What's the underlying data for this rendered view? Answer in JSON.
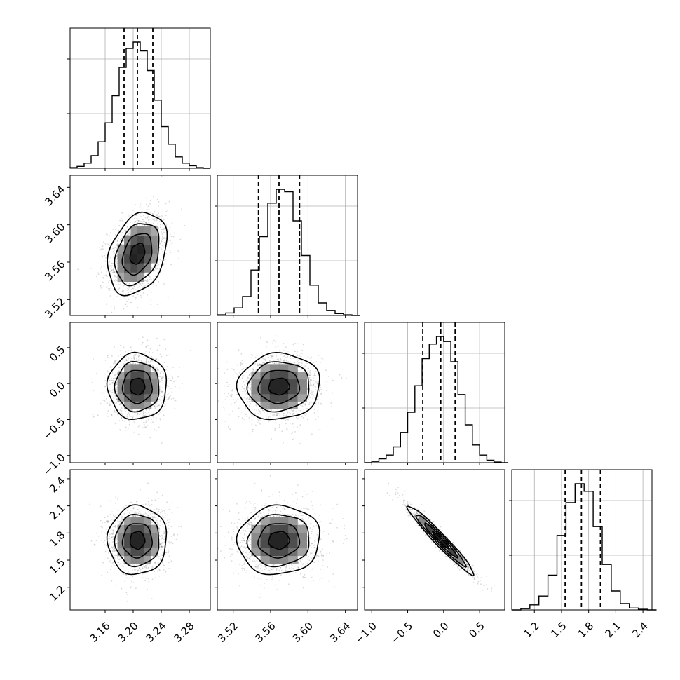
{
  "chart_data": {
    "type": "corner",
    "parameters": 4,
    "grid": true,
    "ranges": [
      [
        3.11,
        3.31
      ],
      [
        3.503,
        3.653
      ],
      [
        -1.1,
        0.85
      ],
      [
        0.95,
        2.5
      ]
    ],
    "ticks": [
      [
        3.16,
        3.2,
        3.24,
        3.28
      ],
      [
        3.52,
        3.56,
        3.6,
        3.64
      ],
      [
        -1.0,
        -0.5,
        0.0,
        0.5
      ],
      [
        1.2,
        1.5,
        1.8,
        2.1,
        2.4
      ]
    ],
    "tick_labels": [
      [
        "3.16",
        "3.20",
        "3.24",
        "3.28"
      ],
      [
        "3.52",
        "3.56",
        "3.60",
        "3.64"
      ],
      [
        "−1.0",
        "−0.5",
        "0.0",
        "0.5"
      ],
      [
        "1.2",
        "1.5",
        "1.8",
        "2.1",
        "2.4"
      ]
    ],
    "y_tick_labels": {
      "row1": [
        "3.52",
        "3.56",
        "3.60",
        "3.64"
      ],
      "row2": [
        "−1.0",
        "−0.5",
        "0.0",
        "0.5"
      ],
      "row3": [
        "1.2",
        "1.5",
        "1.8",
        "2.1",
        "2.4"
      ]
    },
    "quantiles": [
      [
        3.187,
        3.206,
        3.228
      ],
      [
        3.547,
        3.569,
        3.591
      ],
      [
        -0.29,
        -0.04,
        0.16
      ],
      [
        1.54,
        1.72,
        1.93
      ]
    ],
    "marginals": [
      {
        "param": 0,
        "bins": [
          3.11,
          3.12,
          3.13,
          3.14,
          3.15,
          3.16,
          3.17,
          3.18,
          3.19,
          3.2,
          3.21,
          3.22,
          3.23,
          3.24,
          3.25,
          3.26,
          3.27,
          3.28,
          3.29,
          3.3
        ],
        "counts": [
          1,
          3,
          8,
          20,
          42,
          72,
          115,
          160,
          190,
          200,
          186,
          155,
          108,
          66,
          38,
          18,
          8,
          4,
          1,
          0
        ]
      },
      {
        "param": 1,
        "bins": [
          3.503,
          3.512,
          3.521,
          3.53,
          3.539,
          3.548,
          3.557,
          3.566,
          3.575,
          3.584,
          3.593,
          3.602,
          3.611,
          3.62,
          3.629,
          3.638,
          3.647
        ],
        "counts": [
          1,
          4,
          12,
          30,
          72,
          125,
          178,
          200,
          196,
          150,
          95,
          48,
          20,
          8,
          3,
          1,
          0
        ]
      },
      {
        "param": 2,
        "bins": [
          -1.1,
          -1.0,
          -0.9,
          -0.8,
          -0.7,
          -0.6,
          -0.5,
          -0.4,
          -0.3,
          -0.2,
          -0.1,
          0.0,
          0.1,
          0.2,
          0.3,
          0.4,
          0.5,
          0.6,
          0.7,
          0.8
        ],
        "counts": [
          0,
          2,
          6,
          12,
          25,
          48,
          80,
          122,
          165,
          188,
          200,
          192,
          160,
          108,
          60,
          28,
          12,
          4,
          1,
          0
        ]
      },
      {
        "param": 3,
        "bins": [
          0.95,
          1.05,
          1.15,
          1.25,
          1.35,
          1.45,
          1.55,
          1.65,
          1.75,
          1.85,
          1.95,
          2.05,
          2.15,
          2.25,
          2.35,
          2.45
        ],
        "counts": [
          0,
          2,
          8,
          22,
          55,
          118,
          170,
          200,
          188,
          132,
          72,
          30,
          10,
          3,
          1,
          0
        ]
      }
    ],
    "joint": [
      {
        "x": 0,
        "y": 1,
        "mean": [
          3.206,
          3.569
        ],
        "std": [
          0.021,
          0.022
        ],
        "corr": 0.3
      },
      {
        "x": 0,
        "y": 2,
        "mean": [
          3.206,
          -0.04
        ],
        "std": [
          0.021,
          0.23
        ],
        "corr": 0.0
      },
      {
        "x": 1,
        "y": 2,
        "mean": [
          3.569,
          -0.04
        ],
        "std": [
          0.022,
          0.23
        ],
        "corr": 0.05
      },
      {
        "x": 0,
        "y": 3,
        "mean": [
          3.206,
          1.72
        ],
        "std": [
          0.021,
          0.19
        ],
        "corr": 0.02
      },
      {
        "x": 1,
        "y": 3,
        "mean": [
          3.569,
          1.72
        ],
        "std": [
          0.022,
          0.19
        ],
        "corr": 0.05
      },
      {
        "x": 2,
        "y": 3,
        "mean": [
          -0.04,
          1.72
        ],
        "std": [
          0.23,
          0.19
        ],
        "corr": -0.97
      }
    ]
  }
}
